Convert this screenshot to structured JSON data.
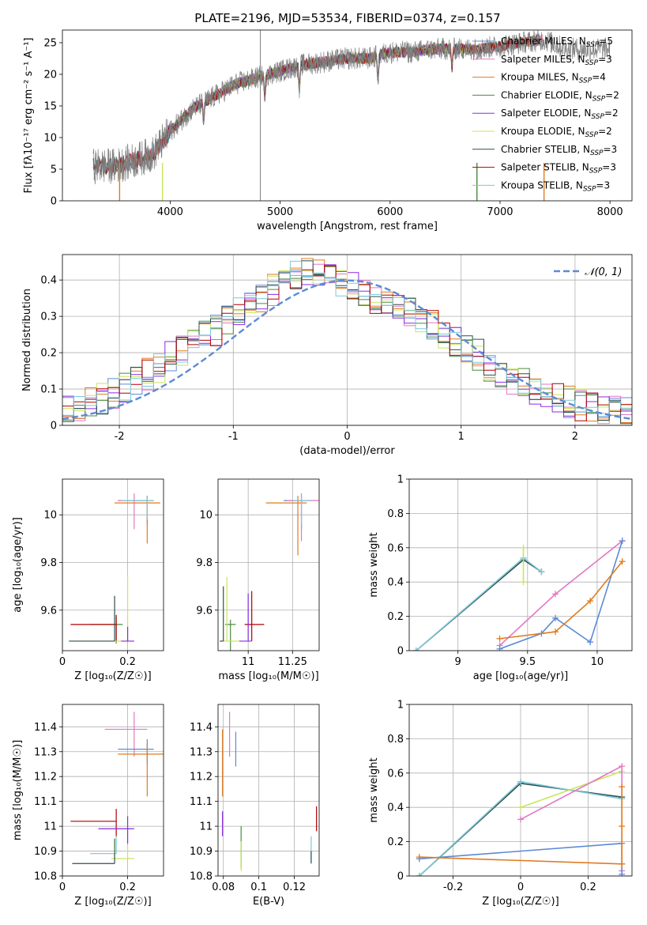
{
  "colors": {
    "chabrier_miles": "#5b8bd5",
    "salpeter_miles": "#e377c2",
    "kroupa_miles": "#e07b1f",
    "chabrier_elodie": "#4a8a40",
    "salpeter_elodie": "#8a2be2",
    "kroupa_elodie": "#c8e65a",
    "chabrier_stelib": "#2f4f4f",
    "salpeter_stelib": "#b00000",
    "kroupa_stelib": "#7ec8d8",
    "observed_spectrum": "#808080",
    "normal_curve": "#5b8bd5"
  },
  "chart_data": [
    {
      "id": "spectrum",
      "type": "line",
      "title": "PLATE=2196, MJD=53534, FIBERID=0374, z=0.157",
      "xlabel": "wavelength [Angstrom, rest frame]",
      "ylabel": "Flux [fλ10⁻¹⁷ erg cm⁻² s⁻¹ A⁻¹]",
      "xlim": [
        3020,
        8200
      ],
      "ylim": [
        0,
        27
      ],
      "xticks": [
        4000,
        5000,
        6000,
        7000,
        8000
      ],
      "yticks": [
        0,
        5,
        10,
        15,
        20,
        25
      ],
      "legend_position": "top-right",
      "legend": [
        {
          "label": "Chabrier MILES, N",
          "sub": "SSP",
          "val": "=5"
        },
        {
          "label": "Salpeter MILES, N",
          "sub": "SSP",
          "val": "=3"
        },
        {
          "label": "Kroupa MILES, N",
          "sub": "SSP",
          "val": "=4"
        },
        {
          "label": "Chabrier ELODIE, N",
          "sub": "SSP",
          "val": "=2"
        },
        {
          "label": "Salpeter ELODIE, N",
          "sub": "SSP",
          "val": "=2"
        },
        {
          "label": "Kroupa ELODIE, N",
          "sub": "SSP",
          "val": "=2"
        },
        {
          "label": "Chabrier STELIB, N",
          "sub": "SSP",
          "val": "=3"
        },
        {
          "label": "Salpeter STELIB, N",
          "sub": "SSP",
          "val": "=3"
        },
        {
          "label": "Kroupa STELIB, N",
          "sub": "SSP",
          "val": "=3"
        }
      ],
      "continuum": {
        "x": [
          3300,
          3500,
          3700,
          3850,
          4000,
          4200,
          4400,
          4600,
          4800,
          5000,
          5200,
          5400,
          5600,
          5800,
          6000,
          6200,
          6400,
          6600,
          6800,
          7000,
          7200,
          7400,
          7600,
          7800,
          8000
        ],
        "y": [
          5.5,
          5.5,
          6.5,
          7.5,
          11,
          14.5,
          16.5,
          18.5,
          19.5,
          20.5,
          21.5,
          22,
          22.5,
          22.5,
          23.5,
          23.5,
          24,
          24,
          24,
          24.5,
          25,
          25.5,
          24,
          24,
          24
        ]
      },
      "features": [
        {
          "x": 4305,
          "depth": 3
        },
        {
          "x": 4861,
          "depth": 3.5
        },
        {
          "x": 5175,
          "depth": 4
        },
        {
          "x": 5890,
          "depth": 4
        },
        {
          "x": 6563,
          "depth": 3
        }
      ],
      "spike": {
        "x": 4820,
        "top": 27,
        "bottom": 0
      },
      "model_cutoffs": [
        {
          "series": "kroupa_miles",
          "x": 3540
        },
        {
          "series": "kroupa_elodie",
          "x": 3930
        },
        {
          "series": "chabrier_elodie",
          "x": 6790
        },
        {
          "series": "kroupa_miles",
          "x": 7400
        }
      ]
    },
    {
      "id": "residual-histogram",
      "type": "line",
      "xlabel": "(data-model)/error",
      "ylabel": "Normed distribution",
      "xlim": [
        -2.5,
        2.5
      ],
      "ylim": [
        0,
        0.47
      ],
      "xticks": [
        -2,
        -1,
        0,
        1,
        2
      ],
      "yticks": [
        0,
        0.1,
        0.2,
        0.3,
        0.4
      ],
      "legend_position": "top-right",
      "legend": [
        {
          "label": "𝒩(0, 1)"
        }
      ],
      "bin_width": 0.1,
      "mean_shape": [
        0.02,
        0.03,
        0.04,
        0.06,
        0.08,
        0.1,
        0.13,
        0.16,
        0.19,
        0.22,
        0.27,
        0.3,
        0.31,
        0.29,
        0.3,
        0.33,
        0.37,
        0.4,
        0.42,
        0.41,
        0.38,
        0.35,
        0.32,
        0.29,
        0.27,
        0.26,
        0.25,
        0.23,
        0.2,
        0.17,
        0.14,
        0.11,
        0.09,
        0.08,
        0.07,
        0.06,
        0.05,
        0.04,
        0.035,
        0.03,
        0.025,
        0.02,
        0.02,
        0.02,
        0.015,
        0.015,
        0.012,
        0.01,
        0.01,
        0.008
      ],
      "hist_start": -2.5,
      "hist_mean_curve": {
        "x": [
          -2.5,
          -2.3,
          -2.1,
          -1.9,
          -1.7,
          -1.5,
          -1.3,
          -1.1,
          -0.9,
          -0.7,
          -0.5,
          -0.3,
          -0.1,
          0.1,
          0.3,
          0.5,
          0.7,
          0.9,
          1.1,
          1.3,
          1.5,
          1.7,
          1.9,
          2.1,
          2.3,
          2.5
        ],
        "y": [
          0.03,
          0.06,
          0.08,
          0.11,
          0.15,
          0.2,
          0.24,
          0.27,
          0.33,
          0.36,
          0.41,
          0.42,
          0.41,
          0.37,
          0.34,
          0.32,
          0.29,
          0.24,
          0.21,
          0.15,
          0.12,
          0.09,
          0.07,
          0.05,
          0.04,
          0.03
        ]
      }
    },
    {
      "id": "age-vs-metallicity",
      "type": "scatter",
      "xlabel": "Z [log₁₀(Z/Z☉)]",
      "ylabel": "age  [log₁₀(age/yr)]",
      "xlim": [
        0,
        0.31
      ],
      "ylim": [
        9.43,
        10.15
      ],
      "xticks": [
        0.0,
        0.2
      ],
      "yticks": [
        9.6,
        9.8,
        10.0
      ],
      "points": [
        {
          "series": "chabrier_miles",
          "x": 0.26,
          "y": 10.06,
          "xerr": [
            0.09,
            0.02
          ],
          "yerr": [
            0.1,
            0.02
          ]
        },
        {
          "series": "salpeter_miles",
          "x": 0.22,
          "y": 10.06,
          "xerr": [
            0.05,
            0.04
          ],
          "yerr": [
            0.12,
            0.03
          ]
        },
        {
          "series": "kroupa_miles",
          "x": 0.26,
          "y": 10.05,
          "xerr": [
            0.1,
            0.04
          ],
          "yerr": [
            0.17,
            0.03
          ]
        },
        {
          "series": "kroupa_stelib",
          "x": 0.26,
          "y": 10.06,
          "xerr": [
            0.08,
            0.02
          ],
          "yerr": [
            0.08,
            0.02
          ]
        },
        {
          "series": "chabrier_elodie",
          "x": 0.165,
          "y": 9.54,
          "xerr": [
            0.08,
            0.02
          ],
          "yerr": [
            0.08,
            0.03
          ]
        },
        {
          "series": "salpeter_stelib",
          "x": 0.165,
          "y": 9.54,
          "xerr": [
            0.14,
            0.0
          ],
          "yerr": [
            0.07,
            0.04
          ]
        },
        {
          "series": "kroupa_elodie",
          "x": 0.2,
          "y": 9.47,
          "xerr": [
            0.05,
            0.02
          ],
          "yerr": [
            0.0,
            0.27
          ]
        },
        {
          "series": "chabrier_stelib",
          "x": 0.16,
          "y": 9.47,
          "xerr": [
            0.14,
            0.0
          ],
          "yerr": [
            0.0,
            0.19
          ]
        },
        {
          "series": "salpeter_elodie",
          "x": 0.2,
          "y": 9.47,
          "xerr": [
            0.02,
            0.02
          ],
          "yerr": [
            0.0,
            0.06
          ]
        }
      ]
    },
    {
      "id": "age-vs-mass",
      "type": "scatter",
      "xlabel": "mass [log₁₀(M/M☉)]",
      "ylabel": "",
      "xlim": [
        10.83,
        11.4
      ],
      "ylim": [
        9.43,
        10.15
      ],
      "xticks": [
        11.0,
        11.25
      ],
      "yticks": [
        9.6,
        9.8,
        10.0
      ],
      "points": [
        {
          "series": "chabrier_miles",
          "x": 11.3,
          "y": 10.06,
          "xerr": [
            0.1,
            0.05
          ],
          "yerr": [
            0.12,
            0.02
          ]
        },
        {
          "series": "salpeter_miles",
          "x": 11.3,
          "y": 10.06,
          "xerr": [
            0.08,
            0.1
          ],
          "yerr": [
            0.17,
            0.03
          ]
        },
        {
          "series": "kroupa_miles",
          "x": 11.28,
          "y": 10.05,
          "xerr": [
            0.18,
            0.05
          ],
          "yerr": [
            0.22,
            0.03
          ]
        },
        {
          "series": "kroupa_stelib",
          "x": 11.3,
          "y": 10.06,
          "xerr": [
            0.05,
            0.05
          ],
          "yerr": [
            0.1,
            0.02
          ]
        },
        {
          "series": "chabrier_elodie",
          "x": 10.9,
          "y": 9.54,
          "xerr": [
            0.03,
            0.03
          ],
          "yerr": [
            0.12,
            0.02
          ]
        },
        {
          "series": "salpeter_stelib",
          "x": 11.02,
          "y": 9.54,
          "xerr": [
            0.04,
            0.07
          ],
          "yerr": [
            0.07,
            0.14
          ]
        },
        {
          "series": "kroupa_elodie",
          "x": 10.88,
          "y": 9.47,
          "xerr": [
            0.02,
            0.07
          ],
          "yerr": [
            0.0,
            0.27
          ]
        },
        {
          "series": "chabrier_stelib",
          "x": 10.86,
          "y": 9.47,
          "xerr": [
            0.02,
            0.0
          ],
          "yerr": [
            0.0,
            0.23
          ]
        },
        {
          "series": "salpeter_elodie",
          "x": 11.0,
          "y": 9.47,
          "xerr": [
            0.05,
            0.02
          ],
          "yerr": [
            0.0,
            0.2
          ]
        }
      ]
    },
    {
      "id": "mass-weight-vs-age",
      "type": "line",
      "xlabel": "age  [log₁₀(age/yr)]",
      "ylabel": "mass weight",
      "xlim": [
        8.65,
        10.25
      ],
      "ylim": [
        0,
        1.0
      ],
      "xticks": [
        9.0,
        9.5,
        10.0
      ],
      "yticks": [
        0.0,
        0.2,
        0.4,
        0.6,
        0.8,
        1.0
      ],
      "series": [
        {
          "name": "chabrier_stelib",
          "x": [
            8.7,
            9.47,
            9.6
          ],
          "y": [
            0.0,
            0.53,
            0.46
          ]
        },
        {
          "name": "kroupa_stelib",
          "x": [
            8.7,
            9.47,
            9.6
          ],
          "y": [
            0.0,
            0.54,
            0.46
          ]
        },
        {
          "name": "kroupa_elodie",
          "x": [
            9.47,
            9.47
          ],
          "y": [
            0.4,
            0.6
          ]
        },
        {
          "name": "salpeter_miles",
          "x": [
            9.3,
            9.7,
            10.18
          ],
          "y": [
            0.03,
            0.33,
            0.64
          ]
        },
        {
          "name": "chabrier_miles",
          "x": [
            9.3,
            9.6,
            9.7,
            9.95,
            10.18
          ],
          "y": [
            0.01,
            0.1,
            0.19,
            0.05,
            0.64
          ]
        },
        {
          "name": "kroupa_miles",
          "x": [
            9.3,
            9.7,
            9.95,
            10.18
          ],
          "y": [
            0.07,
            0.11,
            0.29,
            0.52
          ]
        }
      ]
    },
    {
      "id": "mass-vs-metallicity",
      "type": "scatter",
      "xlabel": "Z [log₁₀(Z/Z☉)]",
      "ylabel": "mass [log₁₀(M/M☉)]",
      "xlim": [
        0,
        0.31
      ],
      "ylim": [
        10.8,
        11.49
      ],
      "xticks": [
        0.0,
        0.2
      ],
      "yticks": [
        10.8,
        10.9,
        11.0,
        11.1,
        11.2,
        11.3,
        11.4
      ],
      "points": [
        {
          "series": "salpeter_miles",
          "x": 0.22,
          "y": 11.39,
          "xerr": [
            0.09,
            0.04
          ],
          "yerr": [
            0.11,
            0.07
          ]
        },
        {
          "series": "chabrier_miles",
          "x": 0.26,
          "y": 11.31,
          "xerr": [
            0.09,
            0.02
          ],
          "yerr": [
            0.06,
            0.04
          ]
        },
        {
          "series": "kroupa_miles",
          "x": 0.26,
          "y": 11.29,
          "xerr": [
            0.09,
            0.05
          ],
          "yerr": [
            0.17,
            0.04
          ]
        },
        {
          "series": "salpeter_stelib",
          "x": 0.165,
          "y": 11.02,
          "xerr": [
            0.14,
            0.0
          ],
          "yerr": [
            0.06,
            0.05
          ]
        },
        {
          "series": "salpeter_elodie",
          "x": 0.2,
          "y": 10.99,
          "xerr": [
            0.09,
            0.02
          ],
          "yerr": [
            0.06,
            0.05
          ]
        },
        {
          "series": "kroupa_stelib",
          "x": 0.165,
          "y": 10.89,
          "xerr": [
            0.08,
            0.0
          ],
          "yerr": [
            0.0,
            0.07
          ]
        },
        {
          "series": "kroupa_elodie",
          "x": 0.2,
          "y": 10.87,
          "xerr": [
            0.05,
            0.02
          ],
          "yerr": [
            0.0,
            0.05
          ]
        },
        {
          "series": "chabrier_stelib",
          "x": 0.16,
          "y": 10.85,
          "xerr": [
            0.13,
            0.0
          ],
          "yerr": [
            0.0,
            0.1
          ]
        },
        {
          "series": "chabrier_elodie",
          "x": 0.16,
          "y": 10.89,
          "xerr": [
            0.0,
            0.0
          ],
          "yerr": [
            0.0,
            0.06
          ]
        }
      ]
    },
    {
      "id": "mass-vs-extinction",
      "type": "scatter",
      "xlabel": "E(B-V)",
      "ylabel": "",
      "xlim": [
        0.077,
        0.134
      ],
      "ylim": [
        10.8,
        11.49
      ],
      "xticks": [
        0.08,
        0.1,
        0.12
      ],
      "yticks": [
        10.8,
        10.9,
        11.0,
        11.1,
        11.2,
        11.3,
        11.4
      ],
      "points": [
        {
          "series": "salpeter_miles",
          "x": 0.0835,
          "y": 11.39,
          "xerr": [
            0,
            0
          ],
          "yerr": [
            0.11,
            0.07
          ]
        },
        {
          "series": "chabrier_miles",
          "x": 0.087,
          "y": 11.31,
          "xerr": [
            0,
            0
          ],
          "yerr": [
            0.07,
            0.07
          ]
        },
        {
          "series": "kroupa_miles",
          "x": 0.0795,
          "y": 11.29,
          "xerr": [
            0,
            0
          ],
          "yerr": [
            0.17,
            0.1
          ]
        },
        {
          "series": "salpeter_elodie",
          "x": 0.0795,
          "y": 11.01,
          "xerr": [
            0,
            0
          ],
          "yerr": [
            0.05,
            0.05
          ]
        },
        {
          "series": "chabrier_elodie",
          "x": 0.09,
          "y": 10.92,
          "xerr": [
            0,
            0
          ],
          "yerr": [
            0.09,
            0.08
          ]
        },
        {
          "series": "kroupa_elodie",
          "x": 0.09,
          "y": 10.87,
          "xerr": [
            0,
            0
          ],
          "yerr": [
            0.05,
            0.07
          ]
        },
        {
          "series": "salpeter_stelib",
          "x": 0.1325,
          "y": 11.02,
          "xerr": [
            0,
            0
          ],
          "yerr": [
            0.04,
            0.06
          ]
        },
        {
          "series": "kroupa_stelib",
          "x": 0.1295,
          "y": 10.9,
          "xerr": [
            0,
            0
          ],
          "yerr": [
            0.04,
            0.06
          ]
        },
        {
          "series": "chabrier_stelib",
          "x": 0.1295,
          "y": 10.87,
          "xerr": [
            0,
            0
          ],
          "yerr": [
            0.02,
            0.03
          ]
        }
      ]
    },
    {
      "id": "mass-weight-vs-metallicity",
      "type": "line",
      "xlabel": "Z [log₁₀(Z/Z☉)]",
      "ylabel": "mass weight",
      "xlim": [
        -0.33,
        0.33
      ],
      "ylim": [
        0,
        1.0
      ],
      "xticks": [
        -0.2,
        0.0,
        0.2
      ],
      "yticks": [
        0.0,
        0.2,
        0.4,
        0.6,
        0.8,
        1.0
      ],
      "series": [
        {
          "name": "chabrier_stelib",
          "x": [
            -0.3,
            0.0,
            0.3
          ],
          "y": [
            0.0,
            0.54,
            0.46
          ]
        },
        {
          "name": "kroupa_stelib",
          "x": [
            -0.3,
            0.0,
            0.3
          ],
          "y": [
            0.0,
            0.55,
            0.45
          ]
        },
        {
          "name": "kroupa_elodie",
          "x": [
            0.0,
            0.3
          ],
          "y": [
            0.4,
            0.61
          ]
        },
        {
          "name": "salpeter_miles",
          "x": [
            0.0,
            0.3,
            0.3
          ],
          "y": [
            0.33,
            0.64,
            0.03
          ]
        },
        {
          "name": "chabrier_miles",
          "x": [
            -0.3,
            0.3,
            0.3
          ],
          "y": [
            0.1,
            0.19,
            0.01
          ]
        },
        {
          "name": "kroupa_miles",
          "x": [
            -0.3,
            0.3,
            0.3,
            0.3,
            0.3
          ],
          "y": [
            0.11,
            0.07,
            0.29,
            0.52,
            0.07
          ]
        }
      ]
    }
  ]
}
